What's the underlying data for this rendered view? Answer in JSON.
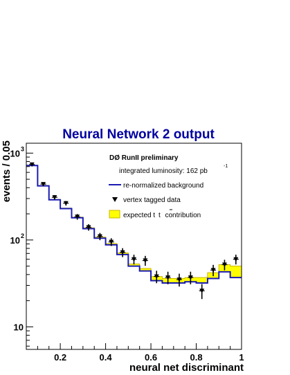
{
  "chart_data": {
    "type": "line",
    "title": "Neural Network 2 output",
    "xlabel": "neural net discriminant",
    "ylabel": "events / 0.05",
    "xlim": [
      0.05,
      1.0
    ],
    "ylim": [
      5.5,
      1300
    ],
    "yscale": "log",
    "grid": false,
    "legend_placement": "top-right",
    "x_ticks": [
      "0.2",
      "0.4",
      "0.6",
      "0.8",
      "1"
    ],
    "y_ticks": [
      {
        "value": 10,
        "base": "10",
        "exp": ""
      },
      {
        "value": 100,
        "base": "10",
        "exp": "2"
      },
      {
        "value": 1000,
        "base": "10",
        "exp": "3"
      }
    ],
    "legend": {
      "experiment_label": "DØ RunII preliminary",
      "luminosity_text": "integrated luminosity: 162 pb",
      "luminosity_exp": "-1",
      "background_label": "re-normalized background",
      "data_label": "vertex tagged data",
      "ttbar_label_prefix": "expected t",
      "ttbar_label_t": "t",
      "ttbar_label_suffix": "contribution"
    },
    "colors": {
      "background_line": "#1a1ab4",
      "ttbar_fill": "#ffff00",
      "ttbar_edge": "#c8b400",
      "data_marker": "#000000",
      "title": "#0000a0"
    },
    "bin_edges": [
      0.05,
      0.1,
      0.15,
      0.2,
      0.25,
      0.3,
      0.35,
      0.4,
      0.45,
      0.5,
      0.55,
      0.6,
      0.65,
      0.7,
      0.75,
      0.8,
      0.85,
      0.9,
      0.95,
      1.0
    ],
    "series": [
      {
        "name": "re-normalized background",
        "values": [
          720,
          420,
          290,
          230,
          180,
          135,
          105,
          88,
          68,
          50,
          44,
          34,
          32,
          32,
          33,
          32,
          36,
          43,
          37
        ]
      },
      {
        "name": "expected t t contribution",
        "values": [
          725,
          425,
          293,
          233,
          183,
          138,
          108,
          91,
          71,
          53,
          47,
          38,
          36,
          36,
          37,
          37,
          42,
          52,
          50
        ]
      },
      {
        "name": "vertex tagged data",
        "x": [
          0.075,
          0.125,
          0.175,
          0.225,
          0.275,
          0.325,
          0.375,
          0.425,
          0.475,
          0.525,
          0.575,
          0.625,
          0.675,
          0.725,
          0.775,
          0.825,
          0.875,
          0.925,
          0.975
        ],
        "values": [
          740,
          440,
          310,
          265,
          185,
          140,
          110,
          95,
          72,
          60,
          58,
          38,
          37,
          35,
          37,
          26,
          45,
          52,
          60
        ],
        "errors": [
          27,
          21,
          18,
          16,
          14,
          12,
          10.5,
          9.7,
          8.5,
          7.7,
          7.6,
          6.2,
          6.1,
          5.9,
          6.1,
          5.1,
          6.7,
          7.2,
          7.7
        ]
      }
    ]
  }
}
